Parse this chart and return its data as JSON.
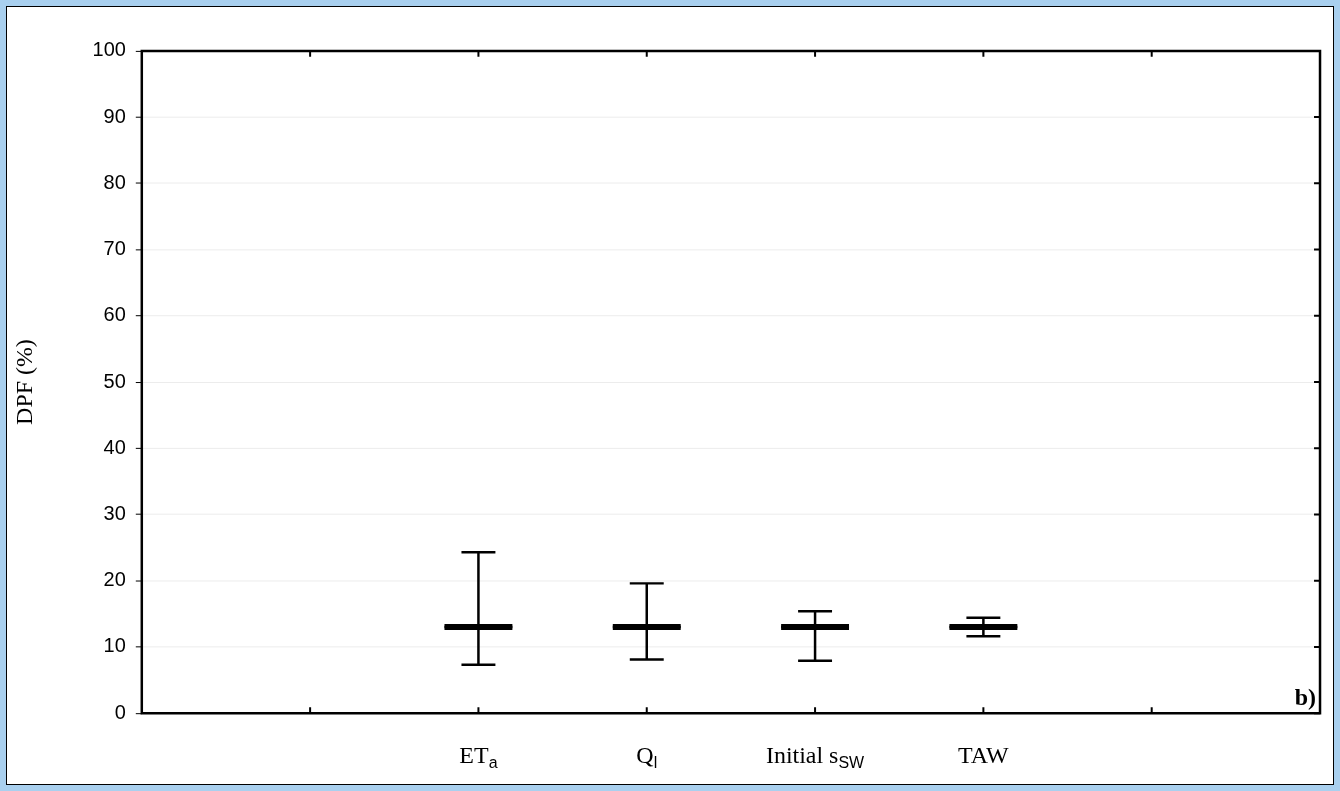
{
  "chart_data": {
    "type": "box",
    "ylabel": "DPF (%)",
    "categories": [
      null,
      null,
      "ET$_{a}$",
      "Q$_{l}$",
      "Initial s$_{SW}$",
      "TAW",
      null,
      null
    ],
    "series": [
      {
        "color": "#000000",
        "boxes": [
          null,
          null,
          {
            "low": 7.3,
            "q1": 13,
            "median": 13,
            "q3": 13,
            "high": 24.3
          },
          {
            "low": 8.1,
            "q1": 13,
            "median": 13,
            "q3": 13,
            "high": 19.6
          },
          {
            "low": 7.9,
            "q1": 13,
            "median": 13,
            "q3": 13,
            "high": 15.4
          },
          {
            "low": 11.6,
            "q1": 13,
            "median": 13,
            "q3": 13,
            "high": 14.4
          },
          null,
          null
        ]
      }
    ],
    "ylim": [
      0,
      100
    ],
    "yticks": [
      0,
      10,
      20,
      30,
      40,
      50,
      60,
      70,
      80,
      90,
      100
    ],
    "grid": "y",
    "legend": false,
    "annotations": [
      "b)"
    ]
  }
}
